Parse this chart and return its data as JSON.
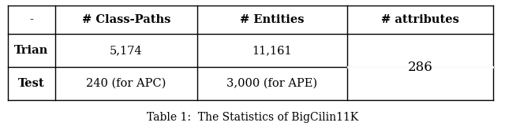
{
  "col_headers": [
    "-",
    "# Class-Paths",
    "# Entities",
    "# attributes"
  ],
  "row1_label": "Trian",
  "row2_label": "Test",
  "row1_col2": "5,174",
  "row1_col3": "11,161",
  "row2_col2": "240 (for APC)",
  "row2_col3": "3,000 (for APE)",
  "merged_col4": "286",
  "caption": "Table 1:  The Statistics of BigCilin11K",
  "bg_color": "#ffffff",
  "text_color": "#000000",
  "header_fontsize": 10.5,
  "cell_fontsize": 10.5,
  "caption_fontsize": 10.0
}
